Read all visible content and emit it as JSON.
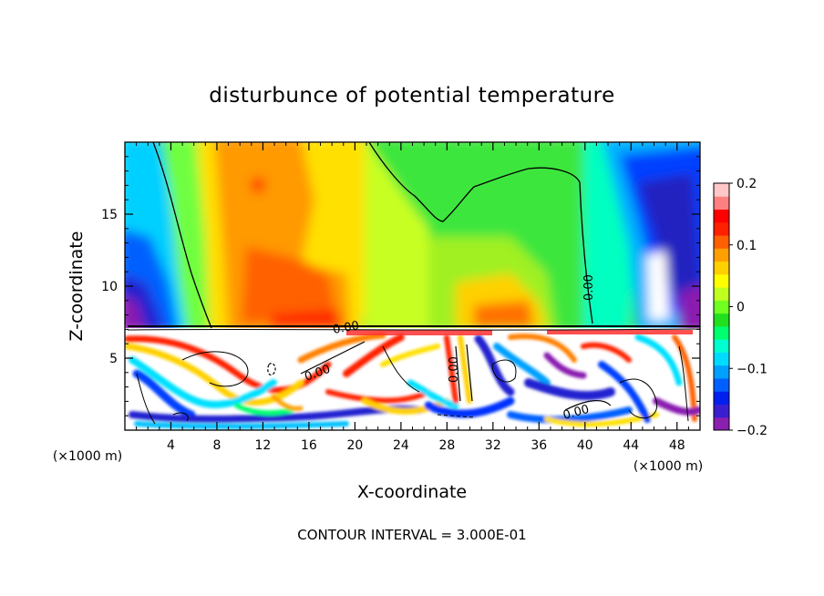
{
  "chart_data": {
    "type": "heatmap",
    "title": "disturbunce of potential temperature",
    "xlabel": "X-coordinate",
    "ylabel": "Z-coordinate",
    "x_unit_left": "(×1000 m)",
    "x_unit_right": "(×1000 m)",
    "xlim": [
      0,
      50
    ],
    "ylim": [
      0,
      20
    ],
    "x_ticks": [
      4,
      8,
      12,
      16,
      20,
      24,
      28,
      32,
      36,
      40,
      44,
      48
    ],
    "x_tick_labels": [
      "4",
      "8",
      "12",
      "16",
      "20",
      "24",
      "28",
      "32",
      "36",
      "40",
      "44",
      "48"
    ],
    "y_ticks": [
      5,
      10,
      15
    ],
    "y_tick_labels": [
      "5",
      "10",
      "15"
    ],
    "colorbar": {
      "range": [
        -0.2,
        0.2
      ],
      "tick_labels": [
        "0.2",
        "0.1",
        "0",
        "−0.1",
        "−0.2"
      ],
      "tick_values": [
        0.2,
        0.1,
        0,
        -0.1,
        -0.2
      ],
      "colors": [
        "#8a1fb0",
        "#3a1fd0",
        "#0020f0",
        "#0060ff",
        "#00a0ff",
        "#00dcff",
        "#00ffd0",
        "#00ff70",
        "#20e020",
        "#70ff20",
        "#c0ff20",
        "#ffff00",
        "#ffd000",
        "#ffa000",
        "#ff6000",
        "#ff2000",
        "#ff0000",
        "#ff8080",
        "#ffc8c8"
      ]
    },
    "contour_labels": [
      "0.00",
      "0.00",
      "0.00",
      "0.00",
      "0.00"
    ],
    "footer": "CONTOUR INTERVAL = 3.000E-01"
  }
}
